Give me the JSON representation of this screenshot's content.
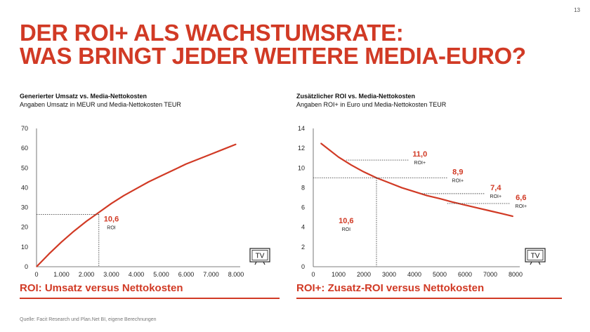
{
  "page_number": "13",
  "title_lines": [
    "DER ROI+ ALS WACHSTUMSRATE:",
    "WAS BRINGT JEDER WEITERE MEDIA-EURO?"
  ],
  "colors": {
    "accent": "#d13a25",
    "line": "#d13a25",
    "guides": "#444444",
    "text": "#222222"
  },
  "icons": {
    "tv": "tv-icon"
  },
  "source": "Quelle: Facit Research und Plan.Net BI, eigene Berechnungen",
  "chart_data": [
    {
      "type": "line",
      "title": "Generierter Umsatz vs. Media-Nettokosten",
      "subtitle": "Angaben Umsatz in MEUR und Media-Nettokosten TEUR",
      "caption": "ROI: Umsatz versus Nettokosten",
      "xlim": [
        0,
        8000
      ],
      "ylim": [
        0,
        70
      ],
      "x_ticks": [
        0,
        1000,
        2000,
        3000,
        4000,
        5000,
        6000,
        7000,
        8000
      ],
      "x_tick_labels": [
        "0",
        "1.000",
        "2.000",
        "3.000",
        "4.000",
        "5.000",
        "6.000",
        "7.000",
        "8.000"
      ],
      "y_ticks": [
        0,
        10,
        20,
        30,
        40,
        50,
        60,
        70
      ],
      "y_tick_labels": [
        "0",
        "10",
        "20",
        "30",
        "40",
        "50",
        "60",
        "70"
      ],
      "grid": false,
      "series": [
        {
          "x": [
            0,
            500,
            1000,
            1500,
            2000,
            2500,
            3000,
            3500,
            4000,
            4500,
            5000,
            5500,
            6000,
            6500,
            7000,
            7500,
            8000
          ],
          "y": [
            0,
            6.5,
            12.5,
            18,
            23,
            27.5,
            32,
            36,
            39.5,
            43,
            46,
            49,
            52,
            54.5,
            57,
            59.5,
            62
          ]
        }
      ],
      "annotations": [
        {
          "x": 2500,
          "y": 26.5,
          "value": "10,6",
          "unit": "ROI",
          "label_x": 3000,
          "label_y": 23
        }
      ]
    },
    {
      "type": "line",
      "title": "Zusätzlicher ROI vs. Media-Nettokosten",
      "subtitle": "Angaben ROI+ in Euro und Media-Nettokosten TEUR",
      "caption": "ROI+: Zusatz-ROI versus Nettokosten",
      "xlim": [
        0,
        8000
      ],
      "ylim": [
        0,
        14
      ],
      "x_ticks": [
        0,
        1000,
        2000,
        3000,
        4000,
        5000,
        6000,
        7000,
        8000
      ],
      "x_tick_labels": [
        "0",
        "1000",
        "2000",
        "3000",
        "4000",
        "5000",
        "6000",
        "7000",
        "8000"
      ],
      "y_ticks": [
        0,
        2,
        4,
        6,
        8,
        10,
        12,
        14
      ],
      "y_tick_labels": [
        "0",
        "2",
        "4",
        "6",
        "8",
        "10",
        "12",
        "14"
      ],
      "grid": false,
      "series": [
        {
          "x": [
            300,
            500,
            1000,
            1500,
            2000,
            2500,
            3000,
            3500,
            4000,
            4500,
            5000,
            5500,
            6000,
            6500,
            7000,
            7500,
            7900
          ],
          "y": [
            12.5,
            12.1,
            11.1,
            10.3,
            9.6,
            9.0,
            8.5,
            8.0,
            7.6,
            7.2,
            6.9,
            6.55,
            6.25,
            5.95,
            5.65,
            5.35,
            5.1
          ]
        }
      ],
      "annotations": [
        {
          "x": 1300,
          "y": 10.8,
          "x_end": 3800,
          "value": "11,0",
          "unit": "ROI+"
        },
        {
          "x": 0,
          "y": 9.0,
          "x_end": 5300,
          "value": "8,9",
          "unit": "ROI+"
        },
        {
          "x": 4300,
          "y": 7.4,
          "x_end": 6800,
          "value": "7,4",
          "unit": "ROI+"
        },
        {
          "x": 5300,
          "y": 6.4,
          "x_end": 7800,
          "value": "6,6",
          "unit": "ROI+"
        }
      ],
      "roi_marker": {
        "x": 2500,
        "value": "10,6",
        "unit": "ROI",
        "label_x": 1300,
        "label_y": 4.4
      }
    }
  ]
}
